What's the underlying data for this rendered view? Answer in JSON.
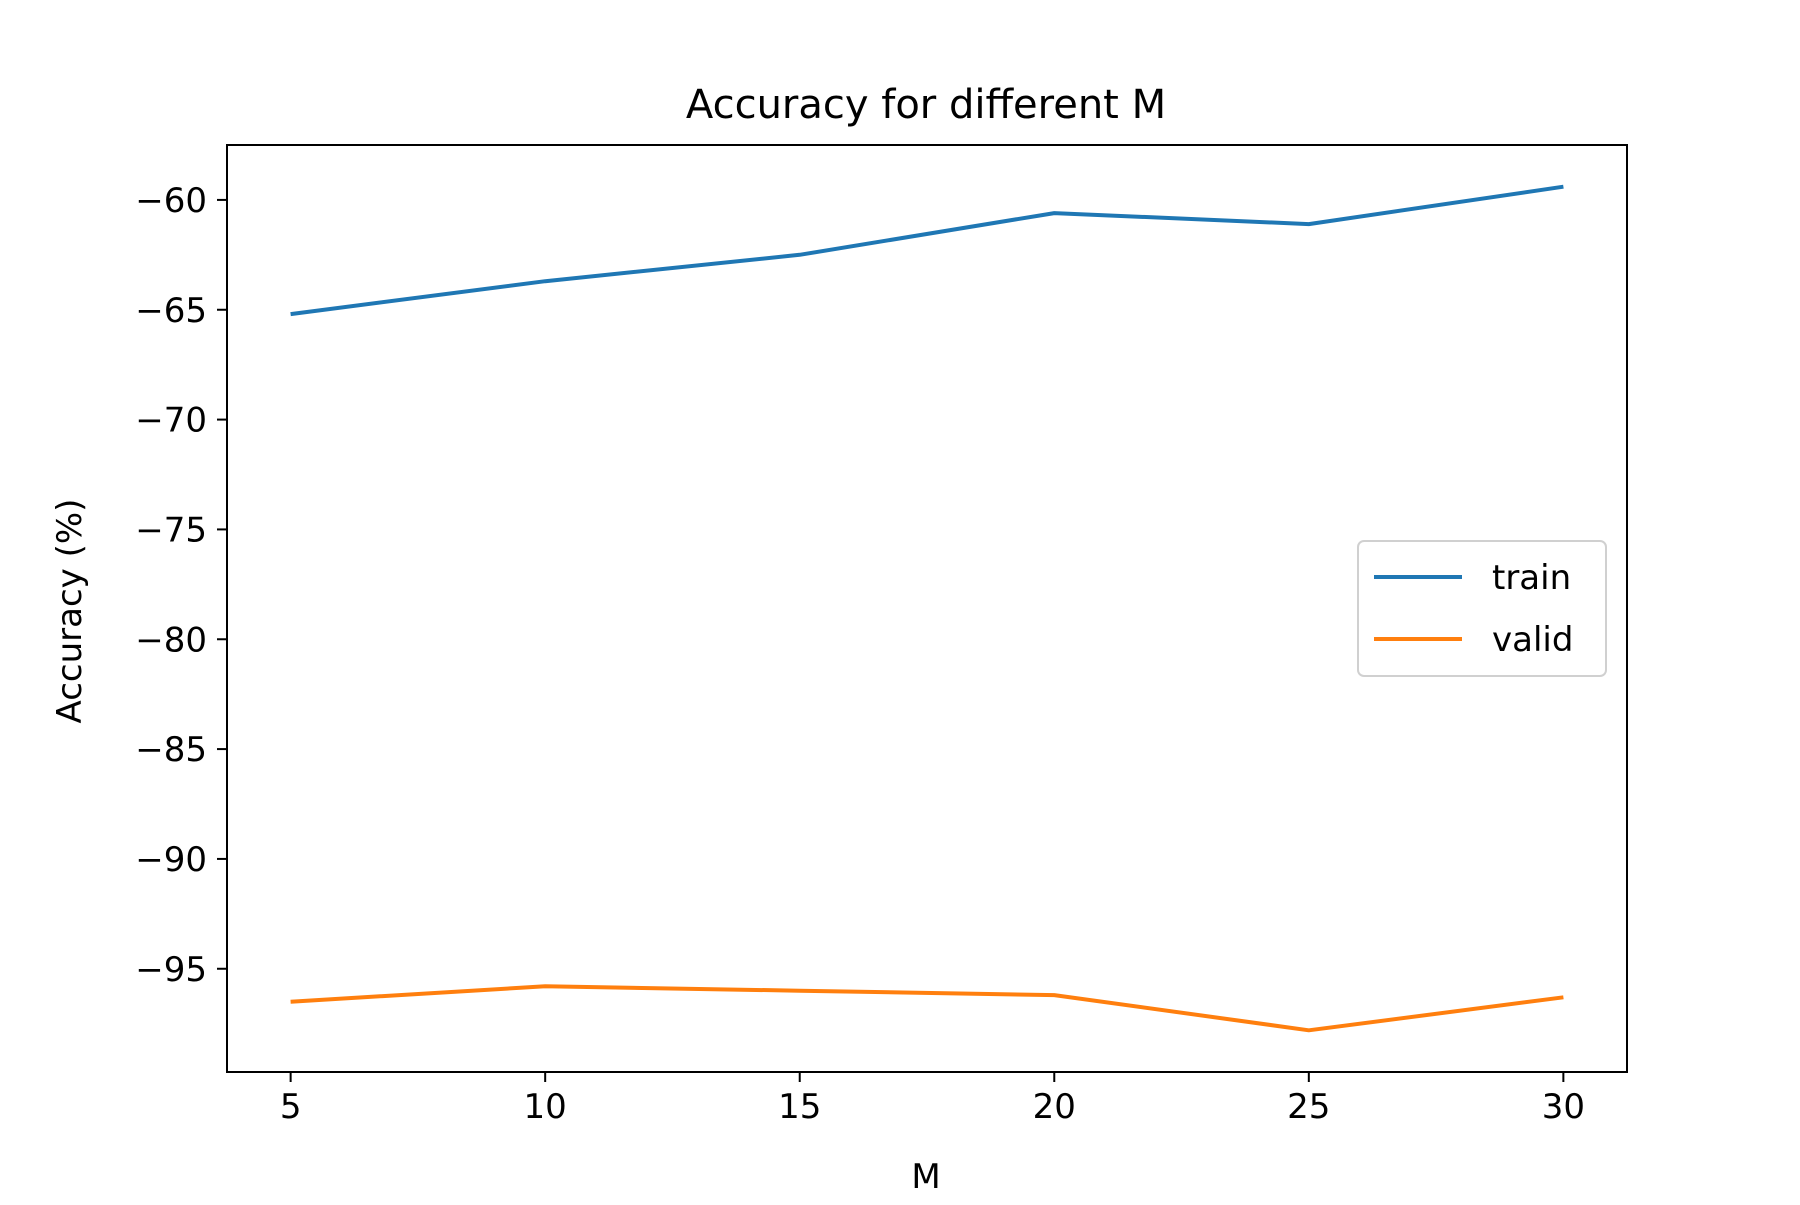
{
  "chart_data": {
    "type": "line",
    "title": "Accuracy for different M",
    "xlabel": "M",
    "ylabel": "Accuracy (%)",
    "x": [
      5,
      10,
      15,
      20,
      25,
      30
    ],
    "xlim": [
      3.75,
      31.25
    ],
    "ylim": [
      -99.7,
      -57.5
    ],
    "xticks": [
      5,
      10,
      15,
      20,
      25,
      30
    ],
    "yticks": [
      -95,
      -90,
      -85,
      -80,
      -75,
      -70,
      -65,
      -60
    ],
    "ytick_labels": [
      "−95",
      "−90",
      "−85",
      "−80",
      "−75",
      "−70",
      "−65",
      "−60"
    ],
    "grid": false,
    "legend_position": "center-right",
    "series": [
      {
        "name": "train",
        "color": "#1f77b4",
        "values": [
          -65.2,
          -63.7,
          -62.5,
          -60.6,
          -61.1,
          -59.4
        ]
      },
      {
        "name": "valid",
        "color": "#ff7f0e",
        "values": [
          -96.5,
          -95.8,
          -96.0,
          -96.2,
          -97.8,
          -96.3
        ]
      }
    ]
  }
}
